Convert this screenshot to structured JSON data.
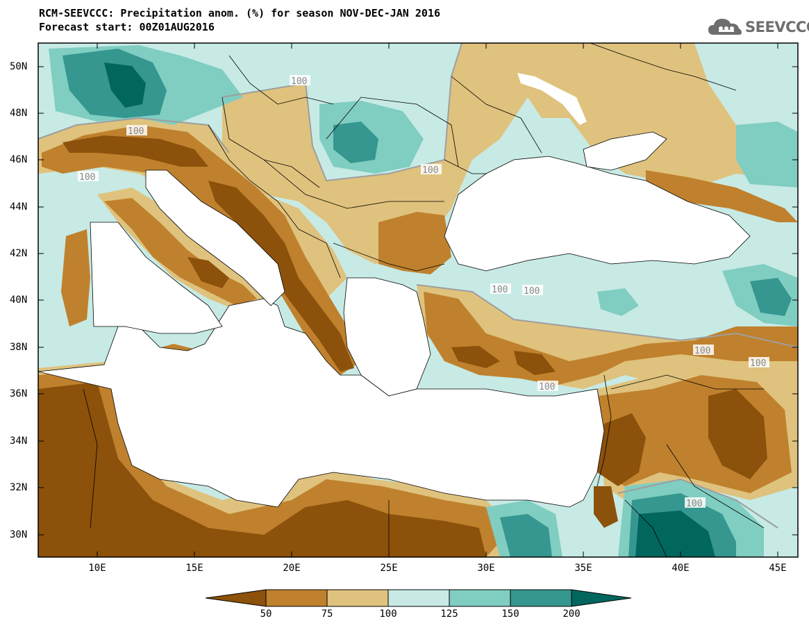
{
  "title_line1": "RCM-SEEVCCC: Precipitation anom. (%) for season NOV-DEC-JAN 2016",
  "title_line2": "Forecast start: 00Z01AUG2016",
  "logo_text": "SEEVCCC",
  "lat_labels": [
    "50N",
    "48N",
    "46N",
    "44N",
    "42N",
    "40N",
    "38N",
    "36N",
    "34N",
    "32N",
    "30N"
  ],
  "lon_labels": [
    "10E",
    "15E",
    "20E",
    "25E",
    "30E",
    "35E",
    "40E",
    "45E"
  ],
  "contour_label": "100",
  "colorbar": {
    "labels": [
      "50",
      "75",
      "100",
      "125",
      "150",
      "200"
    ],
    "colors": [
      "#8c510a",
      "#bf812d",
      "#dfc27d",
      "#c7eae5",
      "#80cdc1",
      "#35978f",
      "#01665e"
    ]
  },
  "map_colors": {
    "land_neutral": "#dfc27d",
    "dry": "#bf812d",
    "very_dry": "#8c510a",
    "wet_light": "#c7eae5",
    "wet": "#80cdc1",
    "very_wet": "#35978f",
    "extreme_wet": "#01665e",
    "sea": "#ffffff"
  }
}
